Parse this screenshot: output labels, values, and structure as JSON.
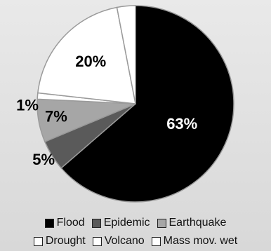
{
  "chart_data": {
    "type": "pie",
    "title": "",
    "slices": [
      {
        "name": "Flood",
        "value": 63,
        "label": "63%",
        "color": "#000000"
      },
      {
        "name": "Epidemic",
        "value": 5,
        "label": "5%",
        "color": "#5a5a5a"
      },
      {
        "name": "Earthquake",
        "value": 7,
        "label": "7%",
        "color": "#a6a6a6"
      },
      {
        "name": "Drought",
        "value": 1,
        "label": "1%",
        "color": "#ffffff"
      },
      {
        "name": "Volcano",
        "value": 20,
        "label": "20%",
        "color": "#ffffff"
      },
      {
        "name": "Mass mov. wet",
        "value": 3,
        "label": "3%",
        "color": "#ffffff"
      }
    ],
    "legend": {
      "placement": "bottom",
      "rows": [
        [
          "Flood",
          "Epidemic",
          "Earthquake"
        ],
        [
          "Drought",
          "Volcano",
          "Mass mov. wet"
        ]
      ]
    }
  }
}
